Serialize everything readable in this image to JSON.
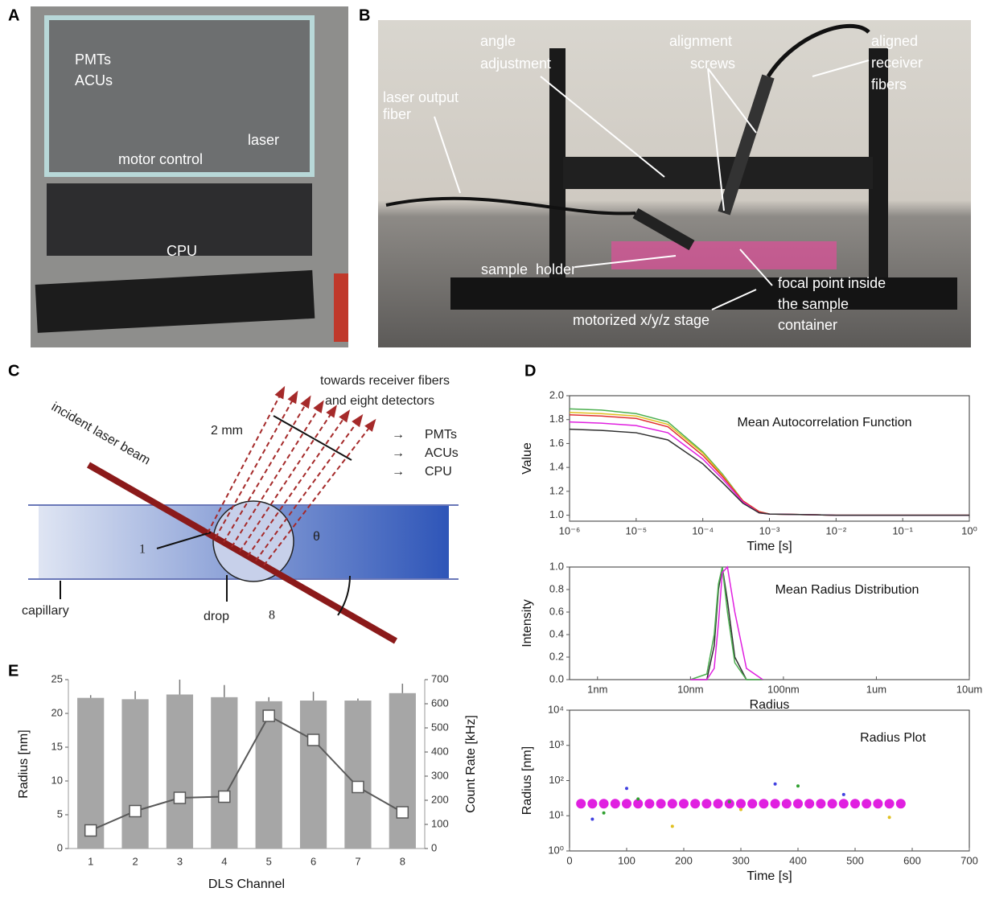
{
  "panels": [
    "A",
    "B",
    "C",
    "D",
    "E"
  ],
  "photo_a": {
    "labels": [
      "PMTs",
      "ACUs",
      "laser",
      "motor control",
      "CPU"
    ]
  },
  "photo_b": {
    "labels": [
      "angle",
      "adjustment",
      "alignment",
      "screws",
      "aligned",
      "receiver",
      "fibers",
      "laser output",
      "fiber",
      "sample  holder",
      "focal point inside",
      "the sample",
      "container",
      "motorized x/y/z stage"
    ]
  },
  "diagram_c": {
    "receiver_text": [
      "towards receiver fibers",
      "and eight detectors"
    ],
    "scale": "2 mm",
    "beam": "incident laser beam",
    "outputs": [
      "PMTs",
      "ACUs",
      "CPU"
    ],
    "first": "1",
    "last": "8",
    "angle": "θ",
    "capillary": "capillary",
    "drop": "drop"
  },
  "chart_data": [
    {
      "type": "bar",
      "xlabel": "DLS Channel",
      "ylabel": "Radius [nm]",
      "y2label": "Count Rate [kHz]",
      "categories": [
        "1",
        "2",
        "3",
        "4",
        "5",
        "6",
        "7",
        "8"
      ],
      "series": [
        {
          "color": "#a6a6a6",
          "values": [
            22.3,
            22.1,
            22.8,
            22.4,
            21.8,
            21.9,
            21.9,
            23.0
          ],
          "errors": [
            0.4,
            1.2,
            2.2,
            1.8,
            0.6,
            1.3,
            0.3,
            1.4
          ]
        },
        {
          "color": "#595959",
          "axis": "y2",
          "values": [
            75,
            155,
            210,
            215,
            550,
            450,
            255,
            150
          ]
        }
      ],
      "ylim": [
        0,
        25
      ],
      "yticks": [
        0,
        5,
        10,
        15,
        20,
        25
      ],
      "y2lim": [
        0,
        700
      ],
      "y2ticks": [
        0,
        100,
        200,
        300,
        400,
        500,
        600,
        700
      ]
    },
    {
      "type": "line",
      "title": "Mean Autocorrelation Function",
      "ylabel": "Value",
      "xlabel": "Time [s]",
      "xscale": "log",
      "x": [
        1e-06,
        3e-06,
        1e-05,
        3e-05,
        0.0001,
        0.0002,
        0.0004,
        0.0007,
        0.001,
        0.01,
        0.1,
        1
      ],
      "series": [
        {
          "color": "#4caf50",
          "values": [
            1.89,
            1.88,
            1.85,
            1.78,
            1.53,
            1.34,
            1.12,
            1.03,
            1.01,
            1,
            1,
            1
          ]
        },
        {
          "color": "#e0c020",
          "values": [
            1.86,
            1.85,
            1.83,
            1.76,
            1.52,
            1.33,
            1.12,
            1.03,
            1.01,
            1,
            1,
            1
          ]
        },
        {
          "color": "#e03030",
          "values": [
            1.84,
            1.83,
            1.81,
            1.74,
            1.5,
            1.32,
            1.12,
            1.03,
            1.01,
            1,
            1,
            1
          ]
        },
        {
          "color": "#e020e0",
          "values": [
            1.78,
            1.77,
            1.75,
            1.69,
            1.47,
            1.3,
            1.11,
            1.02,
            1.01,
            1,
            1,
            1
          ]
        },
        {
          "color": "#303030",
          "values": [
            1.72,
            1.71,
            1.69,
            1.63,
            1.43,
            1.27,
            1.1,
            1.02,
            1.01,
            1,
            1,
            1
          ]
        }
      ],
      "xlim": [
        1e-06,
        1
      ],
      "xticks": [
        {
          "value": 1e-06,
          "label": "10⁻⁶"
        },
        {
          "value": 1e-05,
          "label": "10⁻⁵"
        },
        {
          "value": 0.0001,
          "label": "10⁻⁴"
        },
        {
          "value": 0.001,
          "label": "10⁻³"
        },
        {
          "value": 0.01,
          "label": "10⁻²"
        },
        {
          "value": 0.1,
          "label": "10⁻¹"
        },
        {
          "value": 1,
          "label": "10⁰"
        }
      ],
      "ylim": [
        0.95,
        2
      ],
      "yticks": [
        {
          "value": 1,
          "label": "1.0"
        },
        1.2,
        1.4,
        1.6,
        1.8,
        {
          "value": 2,
          "label": "2.0"
        }
      ]
    },
    {
      "type": "line",
      "title": "Mean Radius Distribution",
      "ylabel": "Intensity",
      "xlabel": "Radius",
      "xscale": "log",
      "x": [
        10,
        15,
        18,
        20,
        22,
        25,
        30,
        40,
        60
      ],
      "series": [
        {
          "color": "#303030",
          "values": [
            0,
            0,
            0.3,
            0.8,
            1,
            0.7,
            0.2,
            0,
            0
          ]
        },
        {
          "color": "#4caf50",
          "values": [
            0,
            0.05,
            0.4,
            0.85,
            1,
            0.6,
            0.15,
            0,
            0
          ]
        },
        {
          "color": "#e020e0",
          "values": [
            0,
            0,
            0.1,
            0.5,
            0.95,
            1,
            0.6,
            0.1,
            0
          ]
        }
      ],
      "xlim": [
        0.5,
        10000
      ],
      "xticks": [
        {
          "value": 1,
          "label": "1nm"
        },
        {
          "value": 10,
          "label": "10nm"
        },
        {
          "value": 100,
          "label": "100nm"
        },
        {
          "value": 1000,
          "label": "1um"
        },
        {
          "value": 10000,
          "label": "10um"
        }
      ],
      "ylim": [
        0,
        1
      ],
      "yticks": [
        {
          "value": 0,
          "label": "0.0"
        },
        0.2,
        0.4,
        0.6,
        0.8,
        {
          "value": 1,
          "label": "1.0"
        }
      ]
    },
    {
      "type": "scatter",
      "title": "Radius Plot",
      "ylabel": "Radius [nm]",
      "xlabel": "Time [s]",
      "yscale": "log",
      "series": [
        {
          "color": "#e020e0",
          "marker_size": 6,
          "x": [
            20,
            40,
            60,
            80,
            100,
            120,
            140,
            160,
            180,
            200,
            220,
            240,
            260,
            280,
            300,
            320,
            340,
            360,
            380,
            400,
            420,
            440,
            460,
            480,
            500,
            520,
            540,
            560,
            580
          ],
          "values": [
            22,
            22,
            22,
            22,
            22,
            22,
            22,
            22,
            22,
            22,
            22,
            22,
            22,
            22,
            22,
            22,
            22,
            22,
            22,
            22,
            22,
            22,
            22,
            22,
            22,
            22,
            22,
            22,
            22
          ]
        },
        {
          "color": "#4040e0",
          "marker_size": 2,
          "x": [
            40,
            100,
            360,
            480
          ],
          "values": [
            8,
            60,
            80,
            40
          ]
        },
        {
          "color": "#30a030",
          "marker_size": 2,
          "x": [
            60,
            120,
            280,
            400
          ],
          "values": [
            12,
            30,
            25,
            70
          ]
        },
        {
          "color": "#e0c020",
          "marker_size": 2,
          "x": [
            180,
            300,
            560
          ],
          "values": [
            5,
            15,
            9
          ]
        }
      ],
      "xlim": [
        0,
        700
      ],
      "xticks": [
        0,
        100,
        200,
        300,
        400,
        500,
        600,
        700
      ],
      "ylim": [
        1,
        10000
      ],
      "yticks": [
        {
          "value": 1,
          "label": "10⁰"
        },
        {
          "value": 10,
          "label": "10¹"
        },
        {
          "value": 100,
          "label": "10²"
        },
        {
          "value": 1000,
          "label": "10³"
        },
        {
          "value": 10000,
          "label": "10⁴"
        }
      ]
    }
  ]
}
